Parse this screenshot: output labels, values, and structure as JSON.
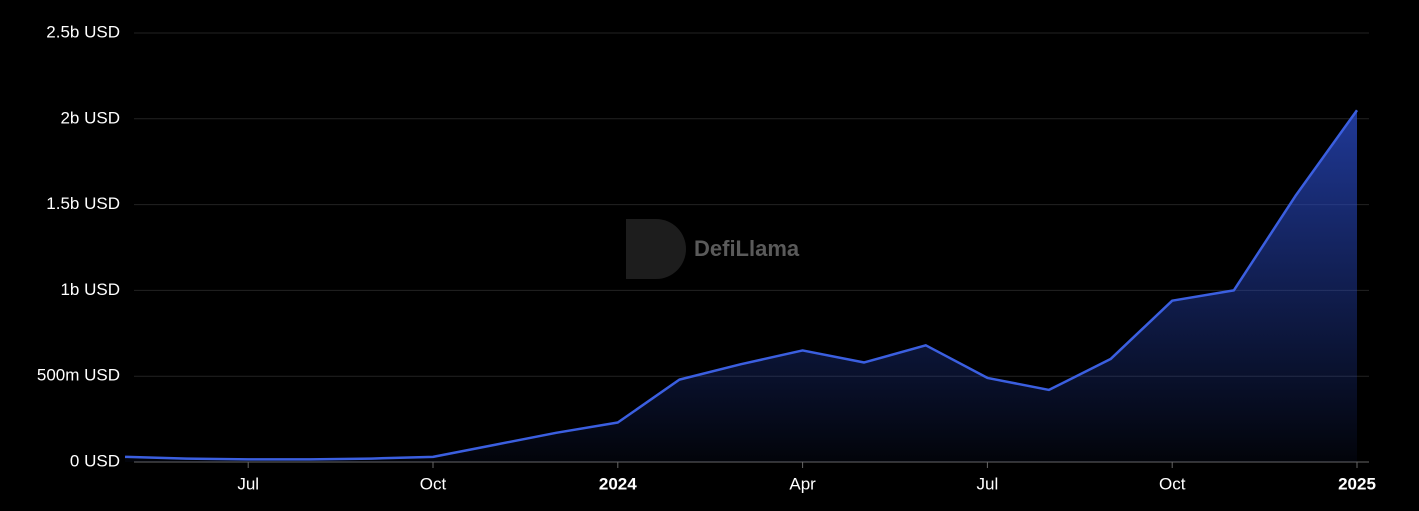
{
  "chart_data": {
    "type": "area",
    "watermark": "DefiLlama",
    "x": [
      "2023-05",
      "2023-06",
      "2023-07",
      "2023-08",
      "2023-09",
      "2023-10",
      "2023-11",
      "2023-12",
      "2024-01",
      "2024-02",
      "2024-03",
      "2024-04",
      "2024-05",
      "2024-06",
      "2024-07",
      "2024-08",
      "2024-09",
      "2024-10",
      "2024-11",
      "2024-12",
      "2025-01"
    ],
    "series": [
      {
        "color": "#3b5fe0",
        "values": [
          30000000,
          20000000,
          15000000,
          15000000,
          20000000,
          30000000,
          100000000,
          170000000,
          230000000,
          480000000,
          570000000,
          650000000,
          580000000,
          680000000,
          490000000,
          420000000,
          600000000,
          940000000,
          1000000000,
          1550000000,
          2050000000
        ]
      }
    ],
    "xlim": [
      "2023-05",
      "2025-01"
    ],
    "xticks": [
      {
        "value": "2023-07",
        "label": "Jul"
      },
      {
        "value": "2023-10",
        "label": "Oct"
      },
      {
        "value": "2024-01",
        "label": "2024"
      },
      {
        "value": "2024-04",
        "label": "Apr"
      },
      {
        "value": "2024-07",
        "label": "Jul"
      },
      {
        "value": "2024-10",
        "label": "Oct"
      },
      {
        "value": "2025-01",
        "label": "2025"
      }
    ],
    "ylim": [
      0,
      2500000000
    ],
    "yticks": [
      {
        "value": 0,
        "label": "0 USD"
      },
      {
        "value": 500000000,
        "label": "500m USD"
      },
      {
        "value": 1000000000,
        "label": "1b USD"
      },
      {
        "value": 1500000000,
        "label": "1.5b USD"
      },
      {
        "value": 2000000000,
        "label": "2b USD"
      },
      {
        "value": 2500000000,
        "label": "2.5b USD"
      }
    ],
    "grid": true
  }
}
